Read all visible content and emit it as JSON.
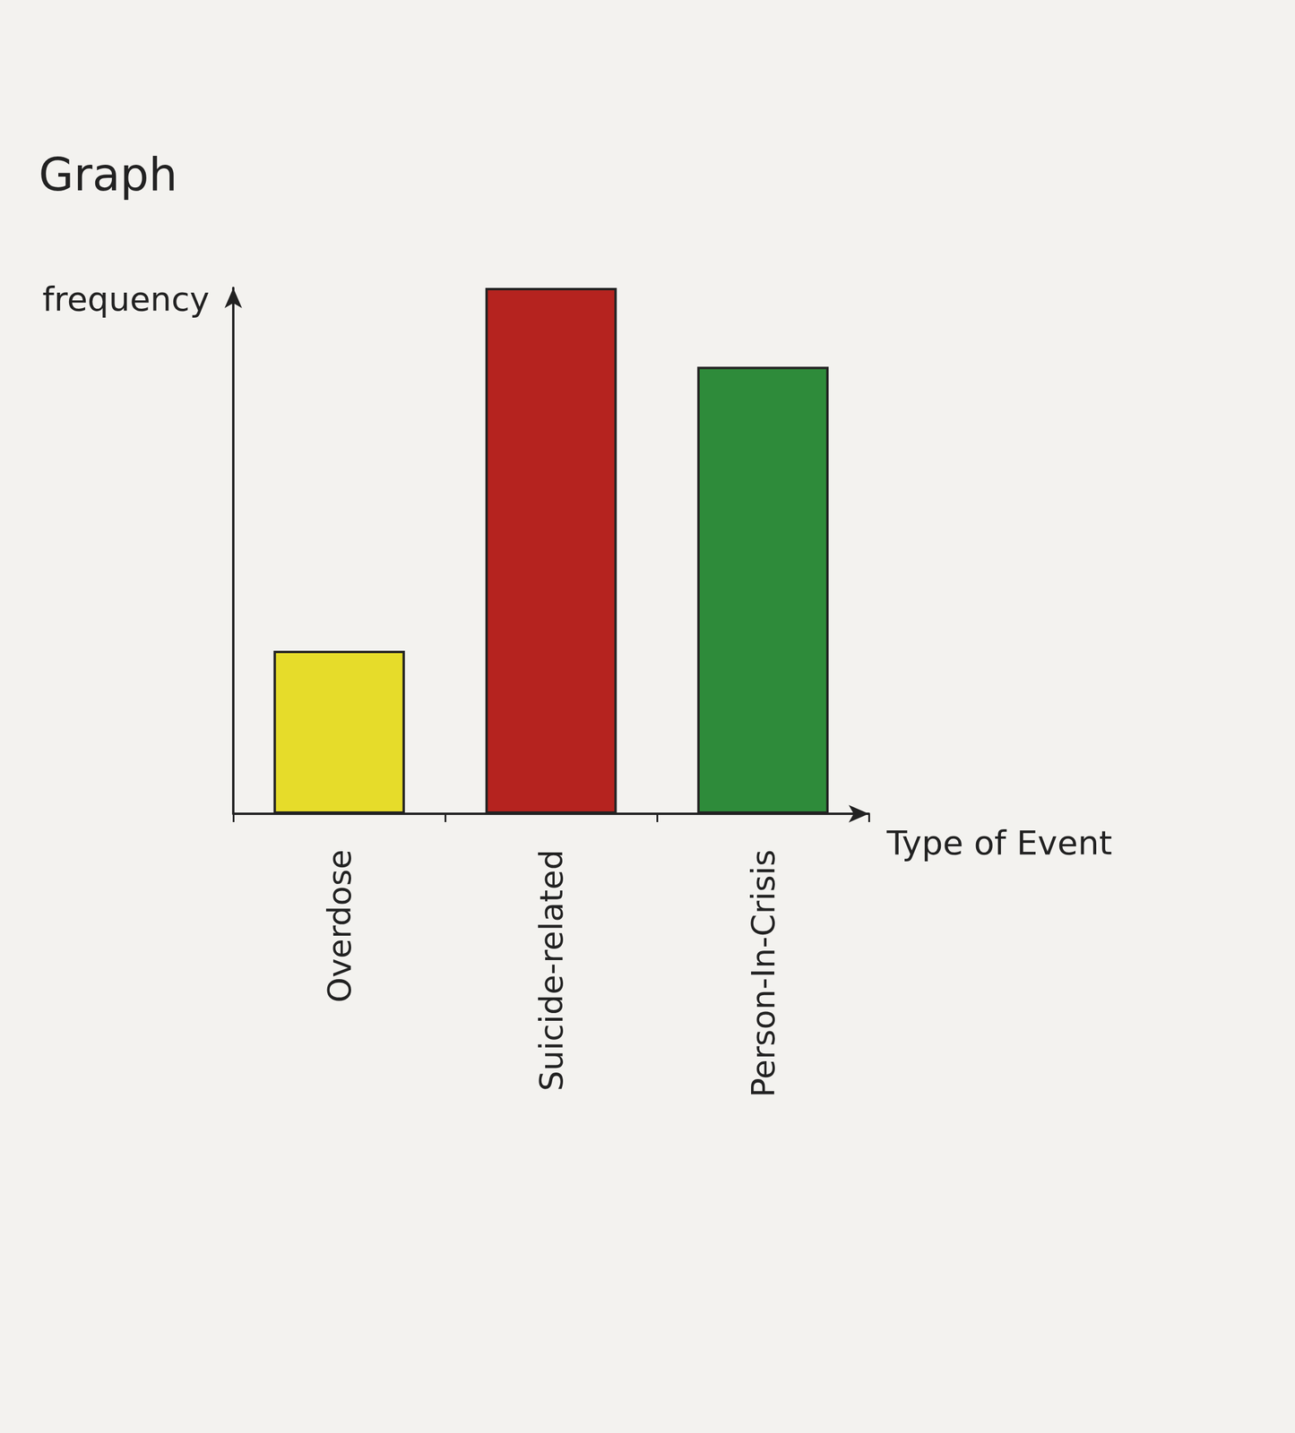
{
  "chart_data": {
    "type": "bar",
    "title": "Graph",
    "x_label": "Type of Event",
    "y_label": "frequency",
    "categories": [
      "Overdose",
      "Suicide-related",
      "Person-In-Crisis"
    ],
    "values": [
      3.1,
      10,
      8.5
    ],
    "colors": [
      "#e6dc2a",
      "#b5231f",
      "#2e8b3a"
    ],
    "ylim": [
      0,
      10
    ],
    "tick_labels": false,
    "grid": false
  }
}
